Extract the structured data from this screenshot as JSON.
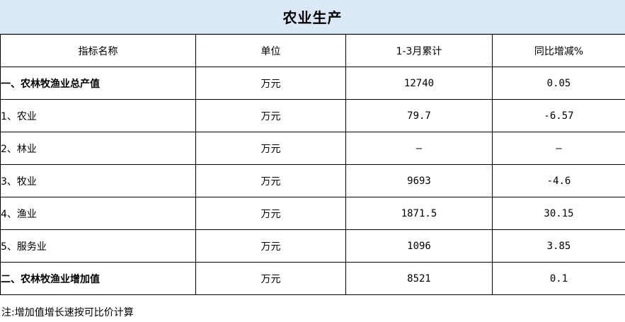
{
  "title": "农业生产",
  "headers": {
    "name": "指标名称",
    "unit": "单位",
    "value": "1-3月累计",
    "change": "同比增减%"
  },
  "rows": [
    {
      "name": "一、农林牧渔业总产值",
      "unit": "万元",
      "value": "12740",
      "change": "0.05",
      "bold": true,
      "level": 0
    },
    {
      "name": "1、农业",
      "unit": "万元",
      "value": "79.7",
      "change": "-6.57",
      "bold": false,
      "level": 1
    },
    {
      "name": "2、林业",
      "unit": "万元",
      "value": "—",
      "change": "—",
      "bold": false,
      "level": 1
    },
    {
      "name": "3、牧业",
      "unit": "万元",
      "value": "9693",
      "change": "-4.6",
      "bold": false,
      "level": 1
    },
    {
      "name": "4、渔业",
      "unit": "万元",
      "value": "1871.5",
      "change": "30.15",
      "bold": false,
      "level": 1
    },
    {
      "name": "5、服务业",
      "unit": "万元",
      "value": "1096",
      "change": "3.85",
      "bold": false,
      "level": 1
    },
    {
      "name": "二、农林牧渔业增加值",
      "unit": "万元",
      "value": "8521",
      "change": "0.1",
      "bold": true,
      "level": 2
    }
  ],
  "note": "注:增加值增长速按可比价计算"
}
